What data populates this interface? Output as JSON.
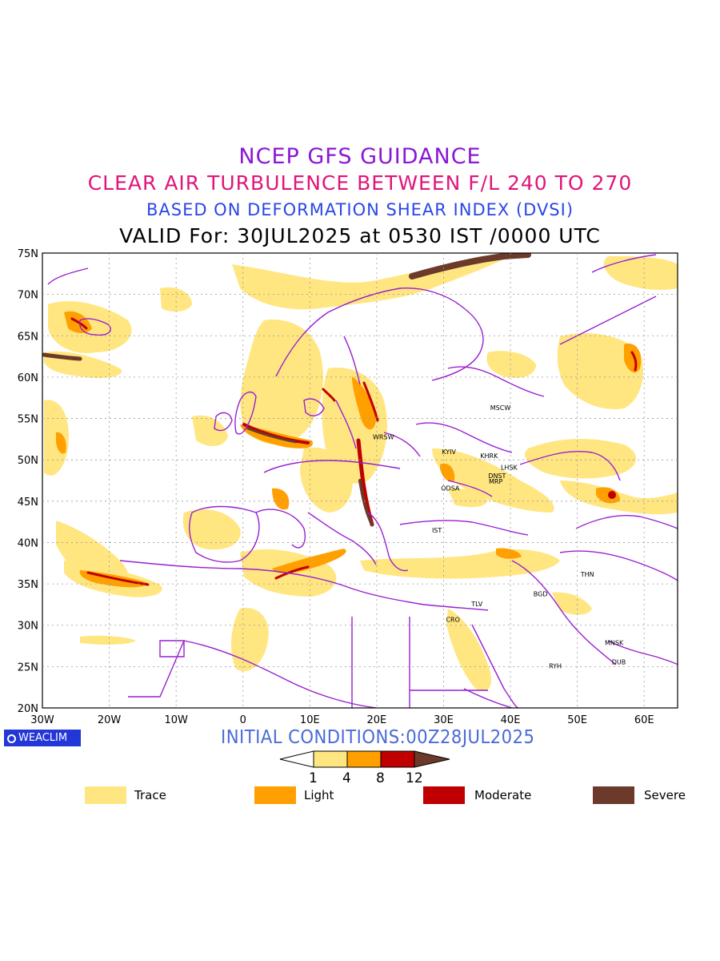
{
  "titles": {
    "line1": "NCEP GFS GUIDANCE",
    "line2": "CLEAR AIR TURBULENCE BETWEEN F/L 240 TO 270",
    "line3": "BASED ON DEFORMATION SHEAR INDEX (DVSI)",
    "line4": "VALID For: 30JUL2025 at 0530 IST /0000 UTC"
  },
  "map": {
    "lat_labels": [
      "75N",
      "70N",
      "65N",
      "60N",
      "55N",
      "50N",
      "45N",
      "40N",
      "35N",
      "30N",
      "25N",
      "20N"
    ],
    "lon_labels": [
      "30W",
      "20W",
      "10W",
      "0",
      "10E",
      "20E",
      "30E",
      "40E",
      "50E",
      "60E"
    ],
    "lon_range": [
      -30,
      65
    ],
    "lat_range": [
      20,
      75
    ],
    "colors": {
      "trace": "#ffe680",
      "light": "#ffa000",
      "moderate": "#c00000",
      "severe": "#6b3a2a",
      "border": "#9a1fd0"
    },
    "stations": [
      {
        "id": "MSCW",
        "lon": 38.5,
        "lat": 56.0
      },
      {
        "id": "WRSW",
        "lon": 21.0,
        "lat": 52.5
      },
      {
        "id": "KYIV",
        "lon": 30.8,
        "lat": 50.7
      },
      {
        "id": "KHRK",
        "lon": 36.8,
        "lat": 50.2
      },
      {
        "id": "LHSK",
        "lon": 39.8,
        "lat": 48.8
      },
      {
        "id": "DNST",
        "lon": 38.0,
        "lat": 47.8
      },
      {
        "id": "MRP",
        "lon": 37.8,
        "lat": 47.1
      },
      {
        "id": "ODSA",
        "lon": 31.0,
        "lat": 46.3
      },
      {
        "id": "IST",
        "lon": 29.0,
        "lat": 41.2
      },
      {
        "id": "THN",
        "lon": 51.5,
        "lat": 35.9
      },
      {
        "id": "BGD",
        "lon": 44.5,
        "lat": 33.5
      },
      {
        "id": "TLV",
        "lon": 35.0,
        "lat": 32.3
      },
      {
        "id": "CRO",
        "lon": 31.4,
        "lat": 30.4
      },
      {
        "id": "MNSK",
        "lon": 55.5,
        "lat": 27.6
      },
      {
        "id": "DUB",
        "lon": 56.2,
        "lat": 25.3
      },
      {
        "id": "RYH",
        "lon": 46.7,
        "lat": 24.8
      }
    ]
  },
  "footer": {
    "brand": "WEACLIM",
    "initial_conditions": "INITIAL CONDITIONS:00Z28JUL2025"
  },
  "colorbar": {
    "ticks": [
      "1",
      "4",
      "8",
      "12"
    ],
    "colors": [
      "#ffe680",
      "#ffa000",
      "#c00000"
    ]
  },
  "legend": [
    {
      "label": "Trace",
      "color": "#ffe680"
    },
    {
      "label": "Light",
      "color": "#ffa000"
    },
    {
      "label": "Moderate",
      "color": "#c00000"
    },
    {
      "label": "Severe",
      "color": "#6b3a2a"
    }
  ]
}
